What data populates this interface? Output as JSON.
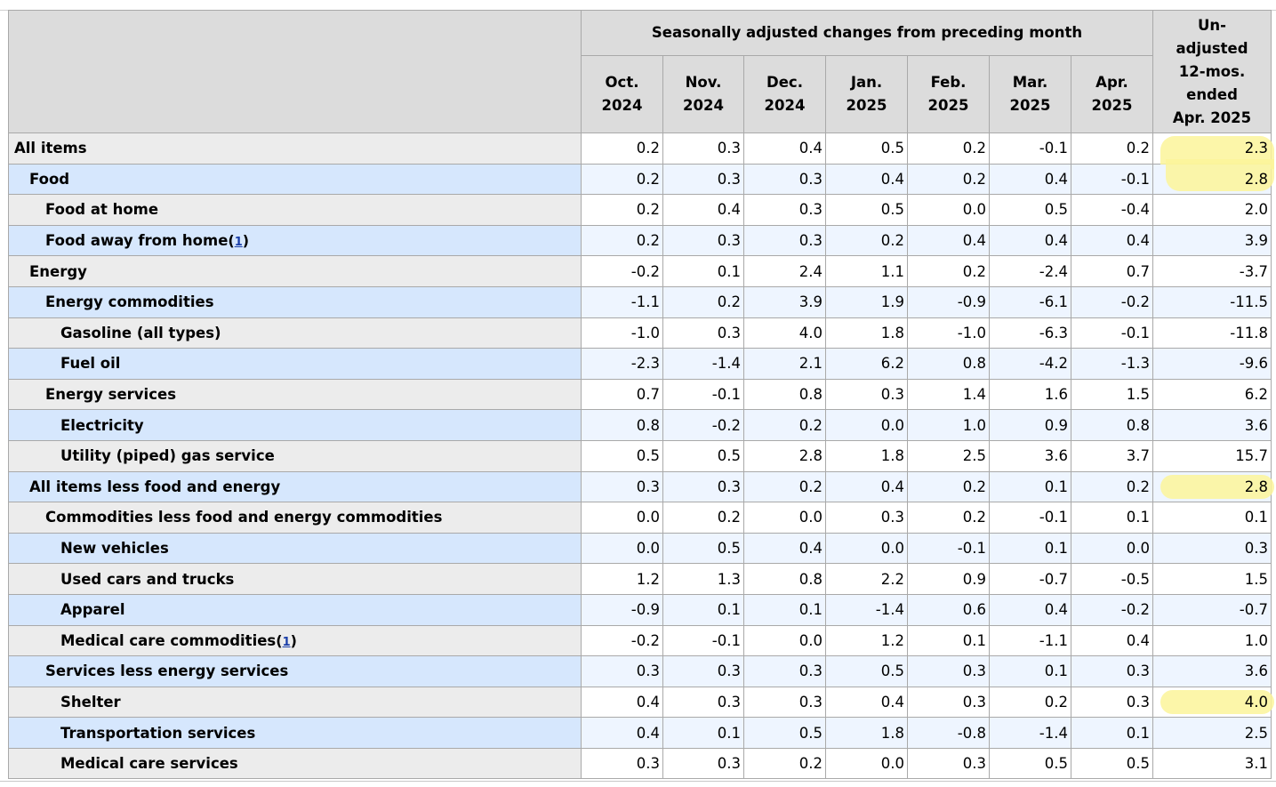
{
  "table": {
    "span_header": "Seasonally adjusted changes from preceding month",
    "months": [
      {
        "l1": "Oct.",
        "l2": "2024"
      },
      {
        "l1": "Nov.",
        "l2": "2024"
      },
      {
        "l1": "Dec.",
        "l2": "2024"
      },
      {
        "l1": "Jan.",
        "l2": "2025"
      },
      {
        "l1": "Feb.",
        "l2": "2025"
      },
      {
        "l1": "Mar.",
        "l2": "2025"
      },
      {
        "l1": "Apr.",
        "l2": "2025"
      }
    ],
    "unadj_header": [
      "Un-",
      "adjusted",
      "12-mos.",
      "ended",
      "Apr. 2025"
    ],
    "footnote_mark": "1",
    "highlight_color": "#fbf59a",
    "rows": [
      {
        "label": "All items",
        "level": 0,
        "values": [
          "0.2",
          "0.3",
          "0.4",
          "0.5",
          "0.2",
          "-0.1",
          "0.2"
        ],
        "unadj": "2.3",
        "highlight": true
      },
      {
        "label": "Food",
        "level": 1,
        "values": [
          "0.2",
          "0.3",
          "0.3",
          "0.4",
          "0.2",
          "0.4",
          "-0.1"
        ],
        "unadj": "2.8",
        "highlight": true
      },
      {
        "label": "Food at home",
        "level": 2,
        "values": [
          "0.2",
          "0.4",
          "0.3",
          "0.5",
          "0.0",
          "0.5",
          "-0.4"
        ],
        "unadj": "2.0"
      },
      {
        "label": "Food away from home",
        "level": 2,
        "footnote": true,
        "values": [
          "0.2",
          "0.3",
          "0.3",
          "0.2",
          "0.4",
          "0.4",
          "0.4"
        ],
        "unadj": "3.9"
      },
      {
        "label": "Energy",
        "level": 1,
        "values": [
          "-0.2",
          "0.1",
          "2.4",
          "1.1",
          "0.2",
          "-2.4",
          "0.7"
        ],
        "unadj": "-3.7"
      },
      {
        "label": "Energy commodities",
        "level": 2,
        "values": [
          "-1.1",
          "0.2",
          "3.9",
          "1.9",
          "-0.9",
          "-6.1",
          "-0.2"
        ],
        "unadj": "-11.5"
      },
      {
        "label": "Gasoline (all types)",
        "level": 3,
        "values": [
          "-1.0",
          "0.3",
          "4.0",
          "1.8",
          "-1.0",
          "-6.3",
          "-0.1"
        ],
        "unadj": "-11.8"
      },
      {
        "label": "Fuel oil",
        "level": 3,
        "values": [
          "-2.3",
          "-1.4",
          "2.1",
          "6.2",
          "0.8",
          "-4.2",
          "-1.3"
        ],
        "unadj": "-9.6"
      },
      {
        "label": "Energy services",
        "level": 2,
        "values": [
          "0.7",
          "-0.1",
          "0.8",
          "0.3",
          "1.4",
          "1.6",
          "1.5"
        ],
        "unadj": "6.2"
      },
      {
        "label": "Electricity",
        "level": 3,
        "values": [
          "0.8",
          "-0.2",
          "0.2",
          "0.0",
          "1.0",
          "0.9",
          "0.8"
        ],
        "unadj": "3.6"
      },
      {
        "label": "Utility (piped) gas service",
        "level": 3,
        "values": [
          "0.5",
          "0.5",
          "2.8",
          "1.8",
          "2.5",
          "3.6",
          "3.7"
        ],
        "unadj": "15.7"
      },
      {
        "label": "All items less food and energy",
        "level": 1,
        "values": [
          "0.3",
          "0.3",
          "0.2",
          "0.4",
          "0.2",
          "0.1",
          "0.2"
        ],
        "unadj": "2.8",
        "highlight": true
      },
      {
        "label": "Commodities less food and energy commodities",
        "level": 2,
        "values": [
          "0.0",
          "0.2",
          "0.0",
          "0.3",
          "0.2",
          "-0.1",
          "0.1"
        ],
        "unadj": "0.1"
      },
      {
        "label": "New vehicles",
        "level": 3,
        "values": [
          "0.0",
          "0.5",
          "0.4",
          "0.0",
          "-0.1",
          "0.1",
          "0.0"
        ],
        "unadj": "0.3"
      },
      {
        "label": "Used cars and trucks",
        "level": 3,
        "values": [
          "1.2",
          "1.3",
          "0.8",
          "2.2",
          "0.9",
          "-0.7",
          "-0.5"
        ],
        "unadj": "1.5"
      },
      {
        "label": "Apparel",
        "level": 3,
        "values": [
          "-0.9",
          "0.1",
          "0.1",
          "-1.4",
          "0.6",
          "0.4",
          "-0.2"
        ],
        "unadj": "-0.7"
      },
      {
        "label": "Medical care commodities",
        "level": 3,
        "footnote": true,
        "values": [
          "-0.2",
          "-0.1",
          "0.0",
          "1.2",
          "0.1",
          "-1.1",
          "0.4"
        ],
        "unadj": "1.0"
      },
      {
        "label": "Services less energy services",
        "level": 2,
        "values": [
          "0.3",
          "0.3",
          "0.3",
          "0.5",
          "0.3",
          "0.1",
          "0.3"
        ],
        "unadj": "3.6"
      },
      {
        "label": "Shelter",
        "level": 3,
        "values": [
          "0.4",
          "0.3",
          "0.3",
          "0.4",
          "0.3",
          "0.2",
          "0.3"
        ],
        "unadj": "4.0",
        "highlight": true
      },
      {
        "label": "Transportation services",
        "level": 3,
        "values": [
          "0.4",
          "0.1",
          "0.5",
          "1.8",
          "-0.8",
          "-1.4",
          "0.1"
        ],
        "unadj": "2.5"
      },
      {
        "label": "Medical care services",
        "level": 3,
        "values": [
          "0.3",
          "0.3",
          "0.2",
          "0.0",
          "0.3",
          "0.5",
          "0.5"
        ],
        "unadj": "3.1"
      }
    ]
  }
}
